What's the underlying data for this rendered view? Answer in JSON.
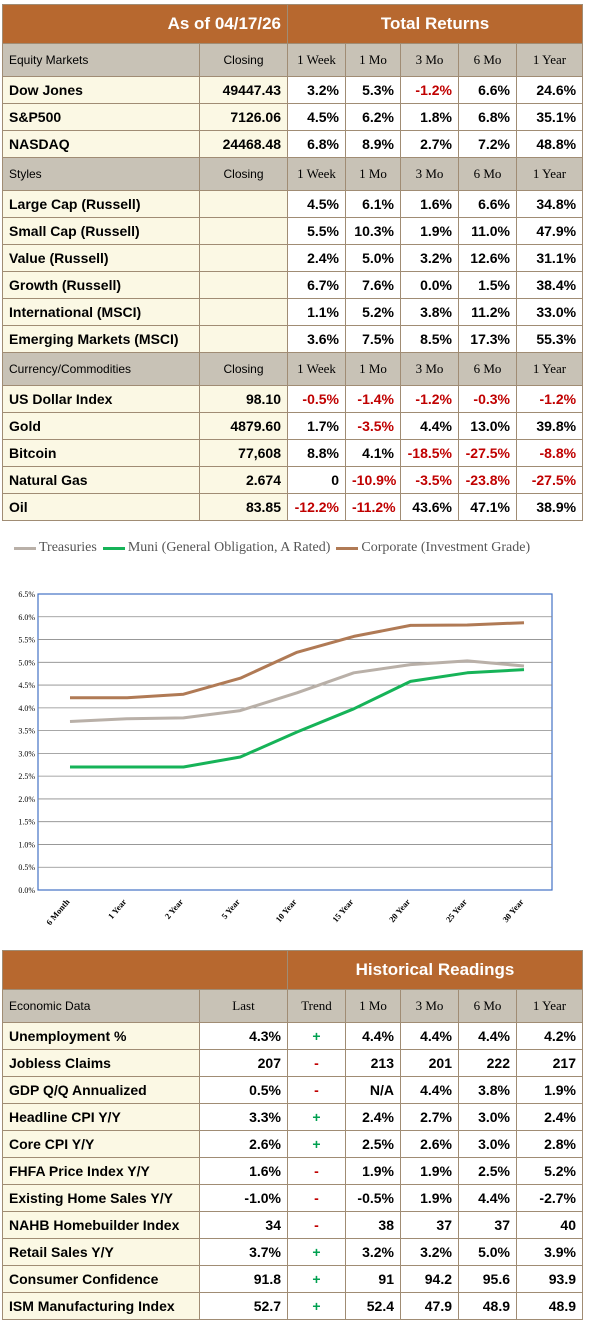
{
  "top_header": {
    "asof": "As of  04/17/26",
    "total_returns": "Total Returns"
  },
  "return_cols": [
    "1 Week",
    "1 Mo",
    "3 Mo",
    "6 Mo",
    "1 Year"
  ],
  "closing_label": "Closing",
  "equity": {
    "title": "Equity Markets",
    "rows": [
      {
        "name": "Dow Jones",
        "closing": "49447.43",
        "vals": [
          "3.2%",
          "5.3%",
          "-1.2%",
          "6.6%",
          "24.6%"
        ]
      },
      {
        "name": "S&P500",
        "closing": "7126.06",
        "vals": [
          "4.5%",
          "6.2%",
          "1.8%",
          "6.8%",
          "35.1%"
        ]
      },
      {
        "name": "NASDAQ",
        "closing": "24468.48",
        "vals": [
          "6.8%",
          "8.9%",
          "2.7%",
          "7.2%",
          "48.8%"
        ]
      }
    ]
  },
  "styles": {
    "title": "Styles",
    "rows": [
      {
        "name": "Large Cap (Russell)",
        "closing": "",
        "vals": [
          "4.5%",
          "6.1%",
          "1.6%",
          "6.6%",
          "34.8%"
        ]
      },
      {
        "name": "Small Cap (Russell)",
        "closing": "",
        "vals": [
          "5.5%",
          "10.3%",
          "1.9%",
          "11.0%",
          "47.9%"
        ]
      },
      {
        "name": "Value (Russell)",
        "closing": "",
        "vals": [
          "2.4%",
          "5.0%",
          "3.2%",
          "12.6%",
          "31.1%"
        ]
      },
      {
        "name": "Growth (Russell)",
        "closing": "",
        "vals": [
          "6.7%",
          "7.6%",
          "0.0%",
          "1.5%",
          "38.4%"
        ]
      },
      {
        "name": "International (MSCI)",
        "closing": "",
        "vals": [
          "1.1%",
          "5.2%",
          "3.8%",
          "11.2%",
          "33.0%"
        ]
      },
      {
        "name": "Emerging Markets (MSCI)",
        "closing": "",
        "vals": [
          "3.6%",
          "7.5%",
          "8.5%",
          "17.3%",
          "55.3%"
        ]
      }
    ]
  },
  "currency": {
    "title": "Currency/Commodities",
    "rows": [
      {
        "name": "US Dollar Index",
        "closing": "98.10",
        "vals": [
          "-0.5%",
          "-1.4%",
          "-1.2%",
          "-0.3%",
          "-1.2%"
        ]
      },
      {
        "name": "Gold",
        "closing": "4879.60",
        "vals": [
          "1.7%",
          "-3.5%",
          "4.4%",
          "13.0%",
          "39.8%"
        ]
      },
      {
        "name": "Bitcoin",
        "closing": "77,608",
        "vals": [
          "8.8%",
          "4.1%",
          "-18.5%",
          "-27.5%",
          "-8.8%"
        ]
      },
      {
        "name": "Natural Gas",
        "closing": "2.674",
        "vals": [
          "0",
          "-10.9%",
          "-3.5%",
          "-23.8%",
          "-27.5%"
        ]
      },
      {
        "name": "Oil",
        "closing": "83.85",
        "vals": [
          "-12.2%",
          "-11.2%",
          "43.6%",
          "47.1%",
          "38.9%"
        ]
      }
    ]
  },
  "colors": {
    "header": "#b7682f",
    "subheader": "#c8c2b6",
    "row_bg": "#fbf8e4",
    "negative": "#c00000",
    "positive_trend": "#00a050"
  },
  "chart_data": {
    "type": "line",
    "categories": [
      "6 Month",
      "1 Year",
      "2 Year",
      "5 Year",
      "10 Year",
      "15 Year",
      "20 Year",
      "25 Year",
      "30 Year"
    ],
    "series": [
      {
        "name": "Treasuries",
        "color": "#b9b0a8",
        "values": [
          3.7,
          3.76,
          3.78,
          3.94,
          4.33,
          4.77,
          4.95,
          5.03,
          4.92
        ]
      },
      {
        "name": "Muni (General Obligation, A Rated)",
        "color": "#16b358",
        "values": [
          2.7,
          2.7,
          2.7,
          2.92,
          3.47,
          3.98,
          4.58,
          4.77,
          4.84
        ]
      },
      {
        "name": "Corporate (Investment Grade)",
        "color": "#b07a55",
        "values": [
          4.22,
          4.22,
          4.3,
          4.65,
          5.22,
          5.57,
          5.81,
          5.82,
          5.87
        ]
      }
    ],
    "ylim": [
      0,
      6.5
    ],
    "yticks": [
      "0.0%",
      "0.5%",
      "1.0%",
      "1.5%",
      "2.0%",
      "2.5%",
      "3.0%",
      "3.5%",
      "4.0%",
      "4.5%",
      "5.0%",
      "5.5%",
      "6.0%",
      "6.5%"
    ],
    "grid": true,
    "legend_position": "top"
  },
  "econ": {
    "header_right": "Historical Readings",
    "title": "Economic Data",
    "cols": [
      "Last",
      "Trend",
      "1 Mo",
      "3 Mo",
      "6 Mo",
      "1 Year"
    ],
    "rows": [
      {
        "name": "Unemployment %",
        "last": "4.3%",
        "trend": "+",
        "vals": [
          "4.4%",
          "4.4%",
          "4.4%",
          "4.2%"
        ]
      },
      {
        "name": "Jobless Claims",
        "last": "207",
        "trend": "-",
        "vals": [
          "213",
          "201",
          "222",
          "217"
        ]
      },
      {
        "name": "GDP Q/Q Annualized",
        "last": "0.5%",
        "trend": "-",
        "vals": [
          "N/A",
          "4.4%",
          "3.8%",
          "1.9%"
        ]
      },
      {
        "name": "Headline CPI Y/Y",
        "last": "3.3%",
        "trend": "+",
        "vals": [
          "2.4%",
          "2.7%",
          "3.0%",
          "2.4%"
        ]
      },
      {
        "name": "Core CPI Y/Y",
        "last": "2.6%",
        "trend": "+",
        "vals": [
          "2.5%",
          "2.6%",
          "3.0%",
          "2.8%"
        ]
      },
      {
        "name": "FHFA Price Index Y/Y",
        "last": "1.6%",
        "trend": "-",
        "vals": [
          "1.9%",
          "1.9%",
          "2.5%",
          "5.2%"
        ]
      },
      {
        "name": "Existing Home Sales Y/Y",
        "last": "-1.0%",
        "trend": "-",
        "vals": [
          "-0.5%",
          "1.9%",
          "4.4%",
          "-2.7%"
        ]
      },
      {
        "name": "NAHB Homebuilder Index",
        "last": "34",
        "trend": "-",
        "vals": [
          "38",
          "37",
          "37",
          "40"
        ]
      },
      {
        "name": "Retail Sales Y/Y",
        "last": "3.7%",
        "trend": "+",
        "vals": [
          "3.2%",
          "3.2%",
          "5.0%",
          "3.9%"
        ]
      },
      {
        "name": "Consumer Confidence",
        "last": "91.8",
        "trend": "+",
        "vals": [
          "91",
          "94.2",
          "95.6",
          "93.9"
        ]
      },
      {
        "name": "ISM Manufacturing Index",
        "last": "52.7",
        "trend": "+",
        "vals": [
          "52.4",
          "47.9",
          "48.9",
          "48.9"
        ]
      }
    ]
  }
}
